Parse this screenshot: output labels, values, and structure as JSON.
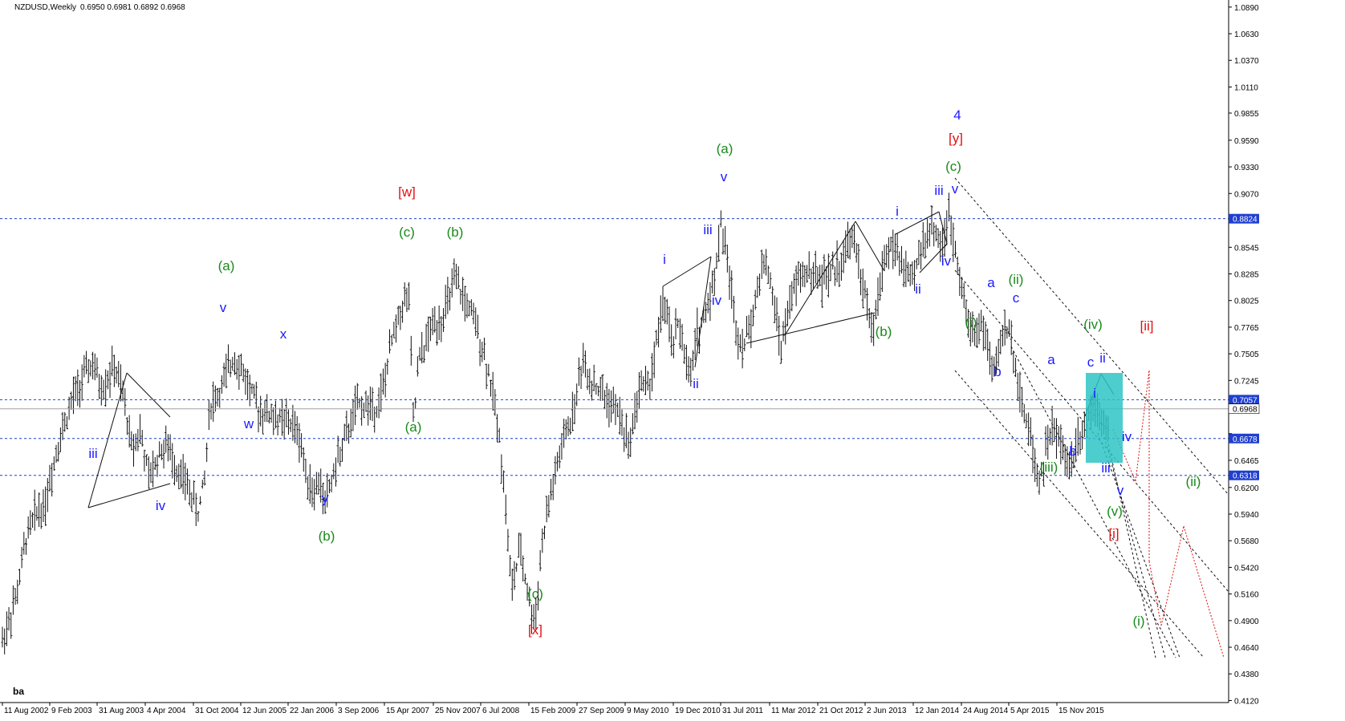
{
  "header": {
    "symbol_label": "NZDUSD,Weekly",
    "ohlc_label": "0.6950 0.6981 0.6892 0.6968"
  },
  "watermark": "ba",
  "chart_data": {
    "type": "line",
    "title": "",
    "x_ticks": [
      "11 Aug 2002",
      "9 Feb 2003",
      "31 Aug 2003",
      "4 Apr 2004",
      "31 Oct 2004",
      "12 Jun 2005",
      "22 Jan 2006",
      "3 Sep 2006",
      "15 Apr 2007",
      "25 Nov 2007",
      "6 Jul 2008",
      "15 Feb 2009",
      "27 Sep 2009",
      "9 May 2010",
      "19 Dec 2010",
      "31 Jul 2011",
      "11 Mar 2012",
      "21 Oct 2012",
      "2 Jun 2013",
      "12 Jan 2014",
      "24 Aug 2014",
      "5 Apr 2015",
      "15 Nov 2015"
    ],
    "y_ticks": [
      "1.0890",
      "1.0630",
      "1.0370",
      "1.0110",
      "0.9855",
      "0.9590",
      "0.9330",
      "0.9070",
      "0.8545",
      "0.8285",
      "0.8025",
      "0.7765",
      "0.7505",
      "0.7245",
      "0.6725",
      "0.6465",
      "0.6200",
      "0.5940",
      "0.5680",
      "0.5420",
      "0.5160",
      "0.4900",
      "0.4640",
      "0.4380",
      "0.4120"
    ],
    "ylim": [
      0.41,
      1.092
    ],
    "levels": [
      {
        "label": "0.8824",
        "value": 0.8824,
        "boxed": true
      },
      {
        "label": "0.7057",
        "value": 0.7057,
        "boxed": true
      },
      {
        "label": "0.6968",
        "value": 0.6968,
        "boxed": false,
        "current": true
      },
      {
        "label": "0.6678",
        "value": 0.6678,
        "boxed": true
      },
      {
        "label": "0.6318",
        "value": 0.6318,
        "boxed": true
      }
    ],
    "price_path": [
      [
        0,
        0.47
      ],
      [
        18,
        0.515
      ],
      [
        30,
        0.572
      ],
      [
        45,
        0.6
      ],
      [
        52,
        0.6
      ],
      [
        70,
        0.664
      ],
      [
        90,
        0.71
      ],
      [
        112,
        0.741
      ],
      [
        125,
        0.716
      ],
      [
        140,
        0.738
      ],
      [
        153,
        0.705
      ],
      [
        162,
        0.66
      ],
      [
        173,
        0.675
      ],
      [
        184,
        0.627
      ],
      [
        198,
        0.656
      ],
      [
        206,
        0.66
      ],
      [
        222,
        0.635
      ],
      [
        232,
        0.622
      ],
      [
        246,
        0.595
      ],
      [
        254,
        0.63
      ],
      [
        260,
        0.7
      ],
      [
        272,
        0.712
      ],
      [
        291,
        0.749
      ],
      [
        305,
        0.727
      ],
      [
        320,
        0.698
      ],
      [
        346,
        0.686
      ],
      [
        362,
        0.683
      ],
      [
        372,
        0.672
      ],
      [
        380,
        0.64
      ],
      [
        390,
        0.614
      ],
      [
        398,
        0.624
      ],
      [
        405,
        0.606
      ],
      [
        422,
        0.65
      ],
      [
        445,
        0.7
      ],
      [
        470,
        0.7
      ],
      [
        478,
        0.716
      ],
      [
        488,
        0.76
      ],
      [
        500,
        0.795
      ],
      [
        510,
        0.81
      ],
      [
        516,
        0.68
      ],
      [
        522,
        0.74
      ],
      [
        540,
        0.78
      ],
      [
        552,
        0.785
      ],
      [
        568,
        0.822
      ],
      [
        582,
        0.8
      ],
      [
        598,
        0.77
      ],
      [
        611,
        0.73
      ],
      [
        620,
        0.69
      ],
      [
        628,
        0.64
      ],
      [
        639,
        0.52
      ],
      [
        650,
        0.56
      ],
      [
        664,
        0.498
      ],
      [
        668,
        0.488
      ],
      [
        678,
        0.57
      ],
      [
        690,
        0.62
      ],
      [
        706,
        0.67
      ],
      [
        717,
        0.695
      ],
      [
        728,
        0.745
      ],
      [
        738,
        0.725
      ],
      [
        755,
        0.71
      ],
      [
        775,
        0.69
      ],
      [
        786,
        0.66
      ],
      [
        800,
        0.72
      ],
      [
        812,
        0.72
      ],
      [
        820,
        0.757
      ],
      [
        830,
        0.8
      ],
      [
        840,
        0.76
      ],
      [
        850,
        0.78
      ],
      [
        863,
        0.72
      ],
      [
        870,
        0.765
      ],
      [
        882,
        0.79
      ],
      [
        894,
        0.827
      ],
      [
        902,
        0.88
      ],
      [
        912,
        0.83
      ],
      [
        922,
        0.77
      ],
      [
        932,
        0.76
      ],
      [
        945,
        0.8
      ],
      [
        956,
        0.845
      ],
      [
        966,
        0.81
      ],
      [
        978,
        0.756
      ],
      [
        988,
        0.8
      ],
      [
        1000,
        0.826
      ],
      [
        1014,
        0.832
      ],
      [
        1030,
        0.822
      ],
      [
        1052,
        0.84
      ],
      [
        1066,
        0.865
      ],
      [
        1076,
        0.835
      ],
      [
        1086,
        0.79
      ],
      [
        1092,
        0.77
      ],
      [
        1098,
        0.8
      ],
      [
        1108,
        0.85
      ],
      [
        1118,
        0.855
      ],
      [
        1130,
        0.835
      ],
      [
        1143,
        0.82
      ],
      [
        1152,
        0.855
      ],
      [
        1170,
        0.878
      ],
      [
        1178,
        0.85
      ],
      [
        1188,
        0.882
      ],
      [
        1200,
        0.84
      ],
      [
        1212,
        0.78
      ],
      [
        1222,
        0.775
      ],
      [
        1232,
        0.777
      ],
      [
        1244,
        0.727
      ],
      [
        1254,
        0.77
      ],
      [
        1266,
        0.772
      ],
      [
        1275,
        0.72
      ],
      [
        1290,
        0.67
      ],
      [
        1302,
        0.625
      ],
      [
        1316,
        0.68
      ],
      [
        1326,
        0.665
      ],
      [
        1340,
        0.64
      ],
      [
        1350,
        0.67
      ],
      [
        1360,
        0.685
      ],
      [
        1370,
        0.705
      ],
      [
        1382,
        0.69
      ],
      [
        1390,
        0.668
      ]
    ],
    "annotations": [
      {
        "text": "iii",
        "color": "blue"
      },
      {
        "text": "iv",
        "color": "blue"
      },
      {
        "text": "(a)",
        "color": "green"
      },
      {
        "text": "v",
        "color": "blue"
      },
      {
        "text": "w",
        "color": "blue"
      },
      {
        "text": "x",
        "color": "blue"
      },
      {
        "text": "y",
        "color": "blue"
      },
      {
        "text": "(b)",
        "color": "green"
      },
      {
        "text": "[w]",
        "color": "red"
      },
      {
        "text": "(c)",
        "color": "green"
      },
      {
        "text": "(a)",
        "color": "green"
      },
      {
        "text": "(b)",
        "color": "green"
      },
      {
        "text": "(c)",
        "color": "green"
      },
      {
        "text": "[x]",
        "color": "red"
      },
      {
        "text": "i",
        "color": "blue"
      },
      {
        "text": "ii",
        "color": "blue"
      },
      {
        "text": "iii",
        "color": "blue"
      },
      {
        "text": "iv",
        "color": "blue"
      },
      {
        "text": "v",
        "color": "blue"
      },
      {
        "text": "(a)",
        "color": "green"
      },
      {
        "text": "(b)",
        "color": "green"
      },
      {
        "text": "i",
        "color": "blue"
      },
      {
        "text": "ii",
        "color": "blue"
      },
      {
        "text": "iii",
        "color": "blue"
      },
      {
        "text": "iv",
        "color": "blue"
      },
      {
        "text": "v",
        "color": "blue"
      },
      {
        "text": "(c)",
        "color": "green"
      },
      {
        "text": "[y]",
        "color": "red"
      },
      {
        "text": "4",
        "color": "blue"
      },
      {
        "text": "(i)",
        "color": "green"
      },
      {
        "text": "a",
        "color": "blue"
      },
      {
        "text": "b",
        "color": "blue"
      },
      {
        "text": "c",
        "color": "blue"
      },
      {
        "text": "(ii)",
        "color": "green"
      },
      {
        "text": "(iii)",
        "color": "green"
      },
      {
        "text": "a",
        "color": "blue"
      },
      {
        "text": "b",
        "color": "blue"
      },
      {
        "text": "c",
        "color": "blue"
      },
      {
        "text": "(iv)",
        "color": "green"
      },
      {
        "text": "i",
        "color": "blue"
      },
      {
        "text": "ii",
        "color": "blue"
      },
      {
        "text": "iii",
        "color": "blue"
      },
      {
        "text": "iv",
        "color": "blue"
      },
      {
        "text": "v",
        "color": "blue"
      },
      {
        "text": "(v)",
        "color": "green"
      },
      {
        "text": "[i]",
        "color": "red"
      },
      {
        "text": "[ii]",
        "color": "red"
      },
      {
        "text": "(ii)",
        "color": "green"
      },
      {
        "text": "(i)",
        "color": "green"
      }
    ]
  }
}
